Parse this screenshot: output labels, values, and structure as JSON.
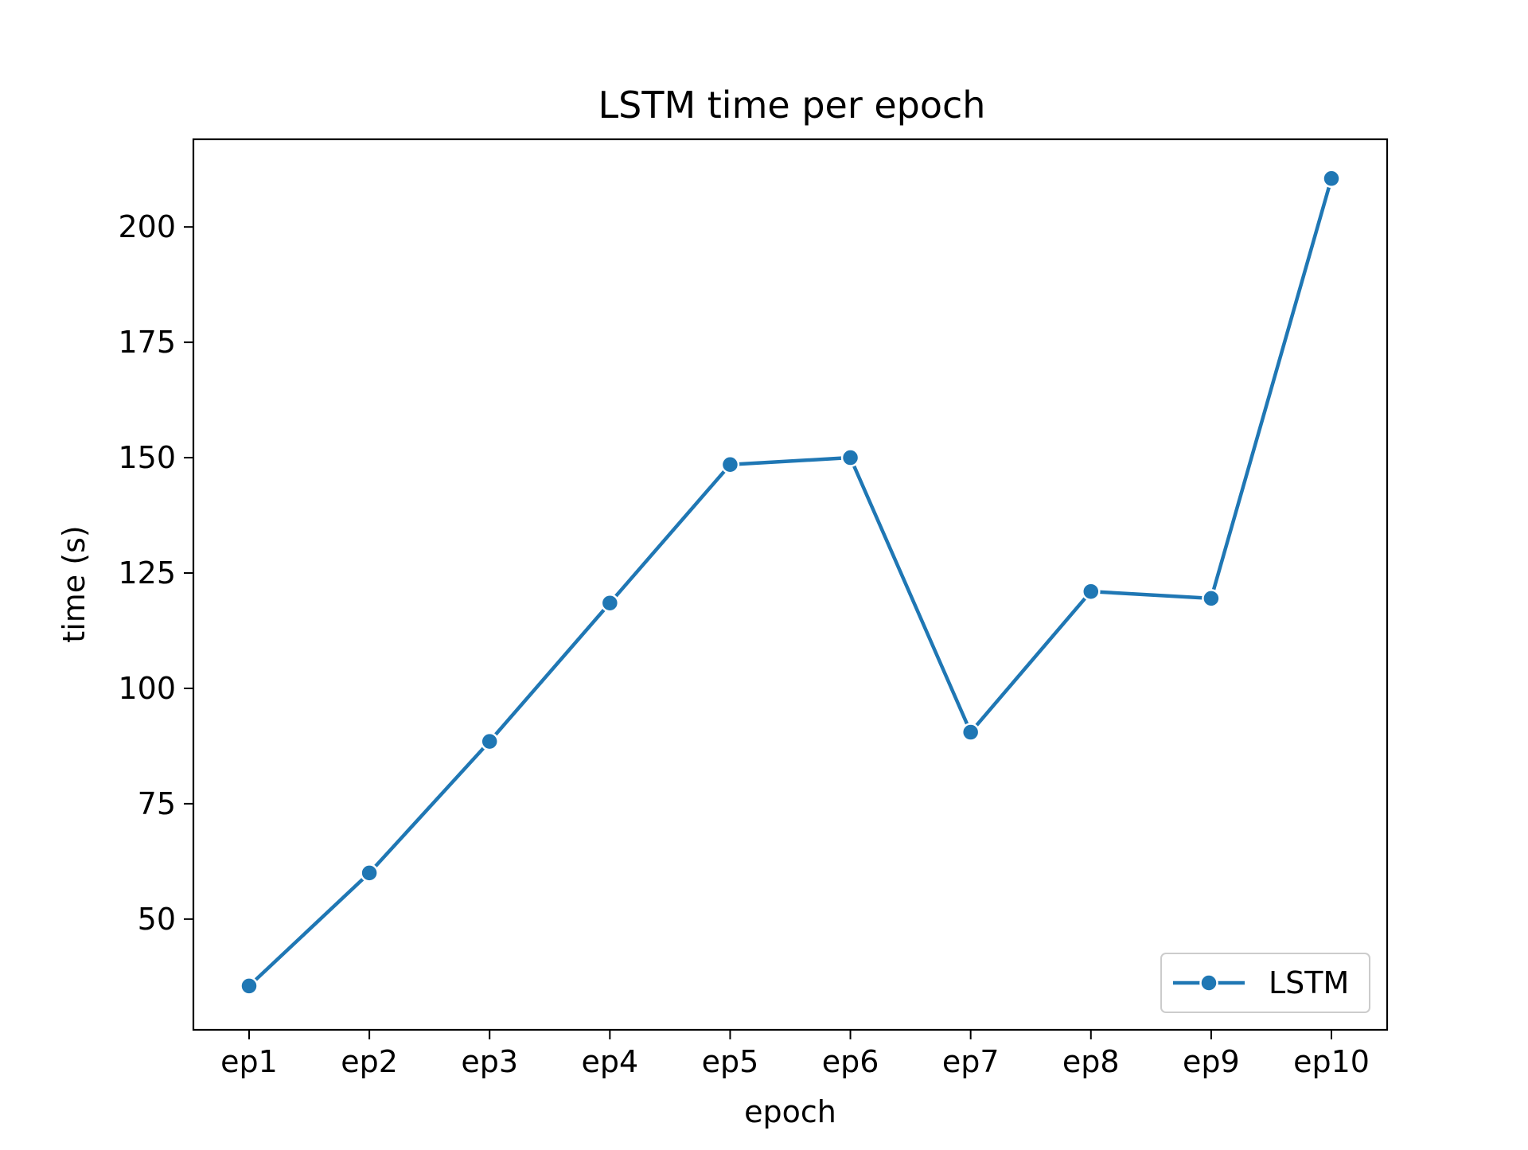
{
  "chart_data": {
    "type": "line",
    "title": "LSTM time per epoch",
    "xlabel": "epoch",
    "ylabel": "time (s)",
    "categories": [
      "ep1",
      "ep2",
      "ep3",
      "ep4",
      "ep5",
      "ep6",
      "ep7",
      "ep8",
      "ep9",
      "ep10"
    ],
    "series": [
      {
        "name": "LSTM",
        "color": "#1f77b4",
        "marker": "circle",
        "values": [
          35.5,
          60,
          88.5,
          118.5,
          148.5,
          150,
          90.5,
          121,
          119.5,
          210.5
        ]
      }
    ],
    "ylim": [
      26,
      219
    ],
    "yticks": [
      50,
      75,
      100,
      125,
      150,
      175,
      200
    ],
    "grid": false,
    "legend": {
      "position": "lower-right"
    }
  }
}
